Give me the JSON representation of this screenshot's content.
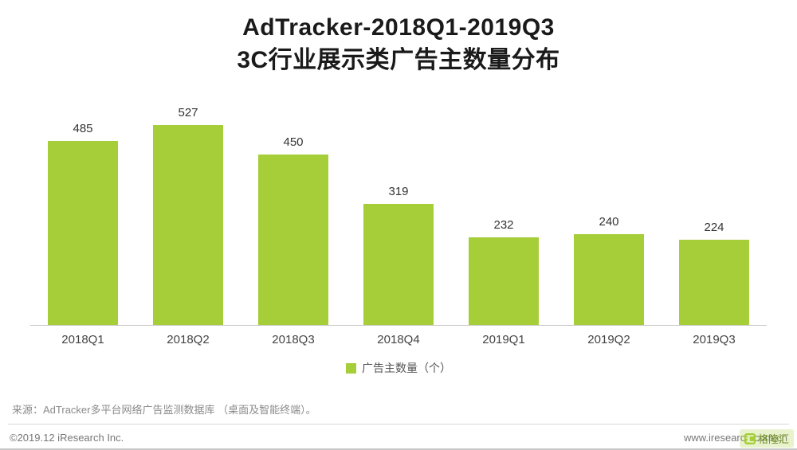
{
  "chart_data": {
    "type": "bar",
    "title": "AdTracker-2018Q1-2019Q3 3C行业展示类广告主数量分布",
    "title_lines": {
      "line1": "AdTracker-2018Q1-2019Q3",
      "line2": "3C行业展示类广告主数量分布"
    },
    "categories": [
      "2018Q1",
      "2018Q2",
      "2018Q3",
      "2018Q4",
      "2019Q1",
      "2019Q2",
      "2019Q3"
    ],
    "values": [
      485,
      527,
      450,
      319,
      232,
      240,
      224
    ],
    "series_name": "广告主数量（个）",
    "bar_color": "#a5ce38",
    "ylim": [
      0,
      560
    ],
    "grid": false,
    "legend_position": "bottom"
  },
  "legend": {
    "label": "广告主数量（个）"
  },
  "footer": {
    "source": "来源：AdTracker多平台网络广告监测数据库 （桌面及智能终端）。",
    "copyright": "©2019.12 iResearch Inc.",
    "website": "www.iresearch.com.cn",
    "watermark": "格隆汇",
    "watermark_icon": "汇"
  }
}
